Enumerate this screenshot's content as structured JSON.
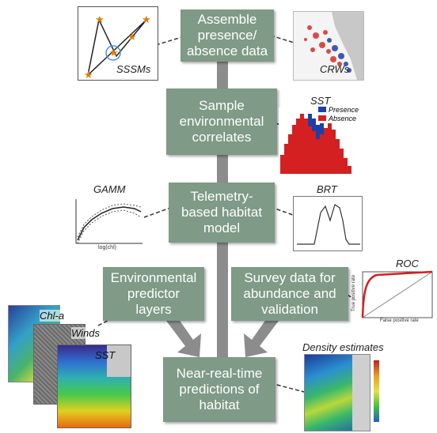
{
  "boxes": {
    "assemble": "Assemble\npresence/\nabsence data",
    "sample": "Sample\nenvironmental\ncorrelates",
    "telemetry": "Telemetry-\nbased habitat\nmodel",
    "env_layers": "Environmental\npredictor\nlayers",
    "survey": "Survey data for\nabundance and\nvalidation",
    "predictions": "Near-real-time\npredictions of\nhabitat"
  },
  "panels": {
    "sssms": "SSSMs",
    "crws": "CRWs",
    "sst_hist": "SST",
    "gamm": "GAMM",
    "brt": "BRT",
    "roc": "ROC",
    "chla": "Chl-a",
    "winds": "Winds",
    "sst_map": "SST",
    "density": "Density estimates"
  },
  "legend": {
    "presence": "Presence",
    "absence": "Absence"
  },
  "roc_axes": {
    "ylabel": "True positive rate",
    "xlabel": "False positive rate"
  },
  "gamm_axes": {
    "xlabel": "log(chl)"
  },
  "colors": {
    "box": "#7f9a86",
    "arrow": "#8c8c8c",
    "presence": "#1f3fa8",
    "absence": "#d42020"
  }
}
